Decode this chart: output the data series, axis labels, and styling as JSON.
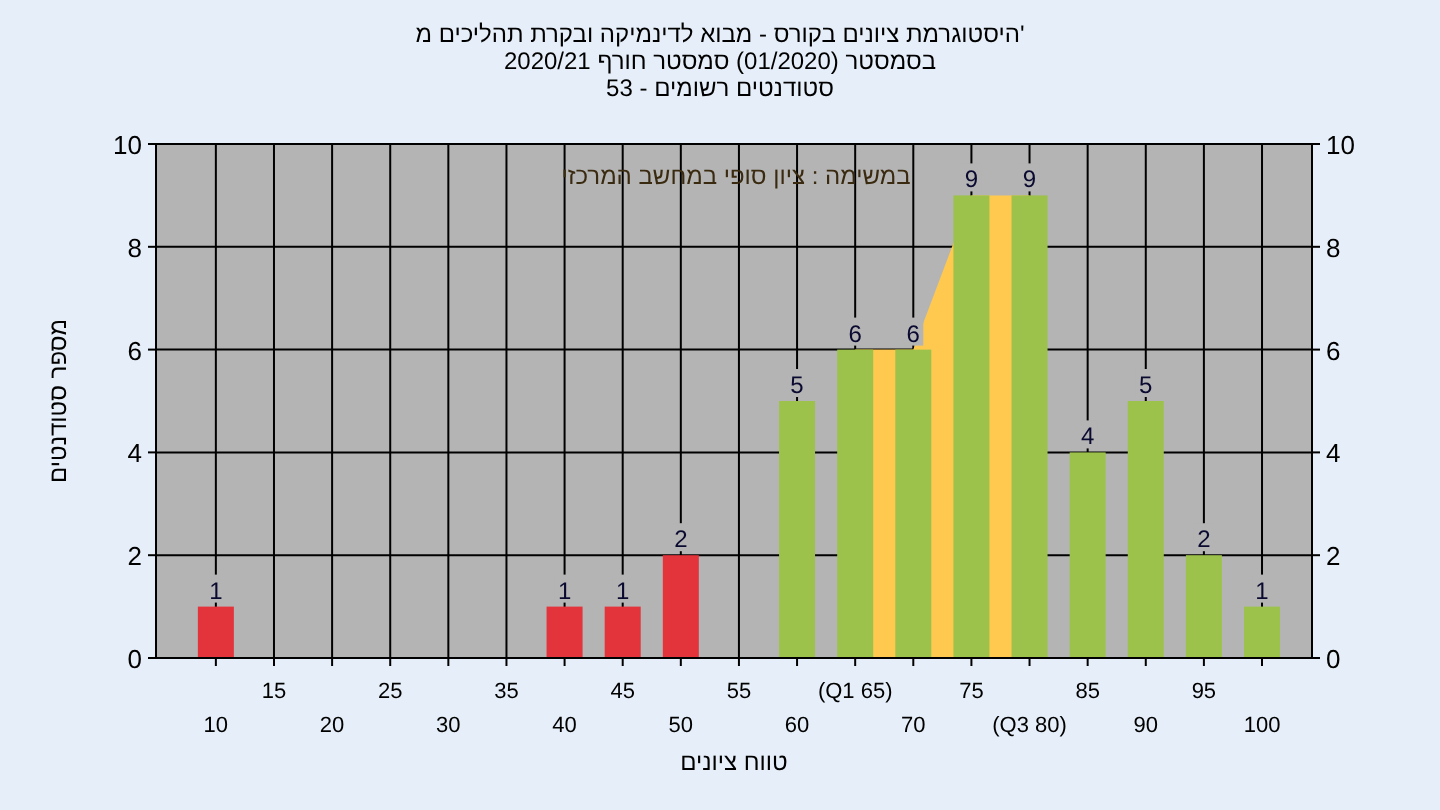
{
  "chart_data": {
    "type": "bar",
    "title": "היסטוגרמת ציונים בקורס - מבוא לדינמיקה ובקרת תהליכים מ'",
    "subtitle": "בסמסטר (01/2020) סמסטר חורף 2020/21\nסטודנטים רשומים - 53",
    "xlabel": "טווח ציונים",
    "ylabel": "מספר סטודנטים",
    "annotations": [
      "במשימה : ציון סופי במחשב המרכזי"
    ],
    "categories": [
      "10",
      "15",
      "20",
      "25",
      "30",
      "35",
      "40",
      "45",
      "50",
      "55",
      "60",
      "(Q1 65)",
      "70",
      "75",
      "(Q3 80)",
      "85",
      "90",
      "95",
      "100"
    ],
    "values": [
      1,
      0,
      0,
      0,
      0,
      0,
      1,
      1,
      2,
      0,
      5,
      6,
      6,
      9,
      9,
      4,
      5,
      2,
      1
    ],
    "value_labels": [
      "1",
      null,
      null,
      null,
      null,
      null,
      "1",
      "1",
      "2",
      null,
      "5",
      "6",
      "6",
      "9",
      "9",
      "4",
      "5",
      "2",
      "1"
    ],
    "colors": [
      "#e3343b",
      "#e3343b",
      "#e3343b",
      "#e3343b",
      "#e3343b",
      "#e3343b",
      "#e3343b",
      "#e3343b",
      "#e3343b",
      "#e3343b",
      "#9dc24b",
      "#9dc24b",
      "#9dc24b",
      "#9dc24b",
      "#9dc24b",
      "#9dc24b",
      "#9dc24b",
      "#9dc24b",
      "#9dc24b"
    ],
    "ylim": [
      0,
      10
    ],
    "yticks": [
      0,
      2,
      4,
      6,
      8,
      10
    ],
    "y2lim": [
      0,
      10
    ],
    "y2ticks": [
      0,
      2,
      4,
      6,
      8,
      10
    ],
    "bands": [
      {
        "axis": "x",
        "from": "(Q1 65)",
        "to": "(Q3 80)",
        "color": "#ffc94f"
      }
    ],
    "grid": true
  }
}
